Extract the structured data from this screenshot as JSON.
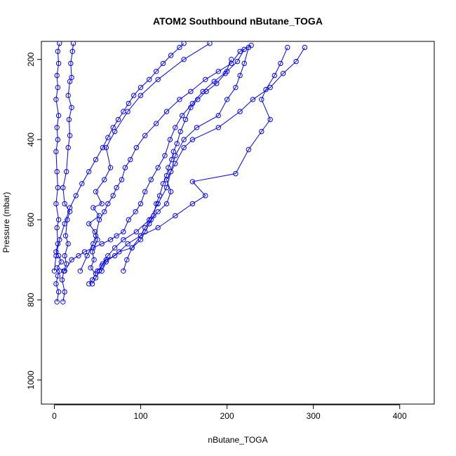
{
  "chart_data": {
    "type": "scatter",
    "title": "ATOM2 Southbound nButane_TOGA",
    "xlabel": "nButane_TOGA",
    "ylabel": "Pressure (mbar)",
    "xlim": [
      -15,
      440
    ],
    "ylim": [
      1060,
      155
    ],
    "y_reversed": true,
    "x_ticks": [
      0,
      100,
      200,
      300,
      400
    ],
    "y_ticks": [
      200,
      400,
      600,
      800,
      1000
    ],
    "marker": "open-circle",
    "series_color": "#0000ff",
    "series": [
      {
        "points": [
          [
            3,
            805
          ],
          [
            5,
            780
          ],
          [
            2,
            760
          ],
          [
            4,
            740
          ],
          [
            6,
            728
          ],
          [
            3,
            720
          ],
          [
            8,
            705
          ],
          [
            5,
            690
          ],
          [
            2,
            680
          ],
          [
            4,
            660
          ],
          [
            3,
            620
          ],
          [
            5,
            600
          ],
          [
            2,
            560
          ],
          [
            4,
            520
          ],
          [
            3,
            480
          ],
          [
            2,
            430
          ],
          [
            4,
            400
          ],
          [
            3,
            370
          ],
          [
            5,
            340
          ],
          [
            2,
            300
          ],
          [
            4,
            270
          ],
          [
            3,
            240
          ],
          [
            5,
            210
          ],
          [
            4,
            180
          ],
          [
            6,
            160
          ]
        ]
      },
      {
        "points": [
          [
            10,
            805
          ],
          [
            12,
            780
          ],
          [
            9,
            750
          ],
          [
            11,
            728
          ],
          [
            14,
            710
          ],
          [
            12,
            690
          ],
          [
            16,
            660
          ],
          [
            13,
            640
          ],
          [
            15,
            600
          ],
          [
            18,
            580
          ],
          [
            12,
            560
          ],
          [
            10,
            520
          ],
          [
            14,
            480
          ],
          [
            16,
            420
          ],
          [
            18,
            390
          ],
          [
            17,
            350
          ],
          [
            20,
            320
          ],
          [
            16,
            290
          ],
          [
            18,
            255
          ],
          [
            20,
            245
          ],
          [
            19,
            210
          ],
          [
            21,
            180
          ],
          [
            22,
            160
          ]
        ]
      },
      {
        "points": [
          [
            40,
            760
          ],
          [
            44,
            750
          ],
          [
            48,
            735
          ],
          [
            42,
            720
          ],
          [
            46,
            700
          ],
          [
            44,
            680
          ],
          [
            50,
            650
          ],
          [
            47,
            630
          ],
          [
            40,
            610
          ],
          [
            52,
            590
          ],
          [
            45,
            570
          ],
          [
            55,
            560
          ],
          [
            48,
            530
          ],
          [
            58,
            500
          ],
          [
            65,
            470
          ],
          [
            60,
            420
          ],
          [
            70,
            380
          ],
          [
            85,
            330
          ],
          [
            100,
            290
          ],
          [
            120,
            250
          ],
          [
            150,
            200
          ],
          [
            180,
            160
          ]
        ]
      },
      {
        "points": [
          [
            44,
            760
          ],
          [
            48,
            745
          ],
          [
            52,
            728
          ],
          [
            56,
            710
          ],
          [
            62,
            690
          ],
          [
            70,
            670
          ],
          [
            80,
            650
          ],
          [
            95,
            630
          ],
          [
            110,
            600
          ],
          [
            120,
            560
          ],
          [
            130,
            520
          ],
          [
            135,
            480
          ],
          [
            140,
            440
          ],
          [
            150,
            400
          ],
          [
            165,
            370
          ],
          [
            190,
            340
          ],
          [
            200,
            300
          ],
          [
            210,
            270
          ],
          [
            215,
            240
          ],
          [
            220,
            210
          ],
          [
            225,
            170
          ]
        ]
      },
      {
        "points": [
          [
            50,
            728
          ],
          [
            55,
            715
          ],
          [
            60,
            700
          ],
          [
            70,
            690
          ],
          [
            85,
            660
          ],
          [
            100,
            640
          ],
          [
            120,
            620
          ],
          [
            140,
            590
          ],
          [
            160,
            560
          ],
          [
            175,
            540
          ],
          [
            160,
            505
          ],
          [
            210,
            485
          ],
          [
            225,
            425
          ],
          [
            240,
            380
          ],
          [
            250,
            350
          ],
          [
            240,
            300
          ],
          [
            245,
            275
          ],
          [
            255,
            240
          ],
          [
            262,
            210
          ],
          [
            270,
            170
          ]
        ]
      },
      {
        "points": [
          [
            55,
            728
          ],
          [
            60,
            705
          ],
          [
            75,
            680
          ],
          [
            90,
            670
          ],
          [
            100,
            640
          ],
          [
            105,
            620
          ],
          [
            112,
            600
          ],
          [
            120,
            580
          ],
          [
            130,
            560
          ],
          [
            135,
            530
          ],
          [
            130,
            500
          ],
          [
            140,
            460
          ],
          [
            150,
            420
          ],
          [
            160,
            400
          ],
          [
            190,
            370
          ],
          [
            215,
            330
          ],
          [
            230,
            300
          ],
          [
            250,
            270
          ],
          [
            265,
            235
          ],
          [
            280,
            205
          ],
          [
            290,
            170
          ]
        ]
      },
      {
        "points": [
          [
            30,
            728
          ],
          [
            38,
            690
          ],
          [
            45,
            660
          ],
          [
            48,
            640
          ],
          [
            52,
            600
          ],
          [
            58,
            580
          ],
          [
            62,
            560
          ],
          [
            68,
            540
          ],
          [
            72,
            520
          ],
          [
            78,
            500
          ],
          [
            82,
            470
          ],
          [
            88,
            450
          ],
          [
            95,
            420
          ],
          [
            105,
            390
          ],
          [
            118,
            360
          ],
          [
            130,
            330
          ],
          [
            145,
            300
          ],
          [
            158,
            280
          ],
          [
            175,
            250
          ],
          [
            190,
            230
          ],
          [
            205,
            210
          ],
          [
            215,
            180
          ],
          [
            228,
            165
          ]
        ]
      },
      {
        "points": [
          [
            12,
            728
          ],
          [
            20,
            700
          ],
          [
            28,
            690
          ],
          [
            35,
            680
          ],
          [
            45,
            670
          ],
          [
            55,
            660
          ],
          [
            65,
            650
          ],
          [
            72,
            640
          ],
          [
            80,
            630
          ],
          [
            86,
            600
          ],
          [
            94,
            580
          ],
          [
            100,
            560
          ],
          [
            105,
            530
          ],
          [
            112,
            500
          ],
          [
            120,
            470
          ],
          [
            128,
            440
          ],
          [
            134,
            400
          ],
          [
            140,
            370
          ],
          [
            148,
            340
          ],
          [
            160,
            310
          ],
          [
            172,
            280
          ],
          [
            185,
            255
          ],
          [
            200,
            230
          ],
          [
            212,
            205
          ],
          [
            220,
            175
          ]
        ]
      },
      {
        "points": [
          [
            80,
            728
          ],
          [
            84,
            700
          ],
          [
            90,
            670
          ],
          [
            100,
            650
          ],
          [
            105,
            630
          ],
          [
            110,
            610
          ],
          [
            115,
            590
          ],
          [
            118,
            560
          ],
          [
            122,
            540
          ],
          [
            126,
            510
          ],
          [
            130,
            490
          ],
          [
            132,
            470
          ],
          [
            136,
            450
          ],
          [
            138,
            430
          ],
          [
            142,
            410
          ],
          [
            146,
            380
          ],
          [
            152,
            350
          ],
          [
            158,
            320
          ],
          [
            166,
            300
          ],
          [
            176,
            280
          ],
          [
            188,
            260
          ],
          [
            198,
            235
          ],
          [
            205,
            200
          ]
        ]
      },
      {
        "points": [
          [
            0,
            728
          ],
          [
            2,
            690
          ],
          [
            6,
            650
          ],
          [
            12,
            610
          ],
          [
            18,
            570
          ],
          [
            25,
            540
          ],
          [
            32,
            510
          ],
          [
            40,
            480
          ],
          [
            48,
            450
          ],
          [
            56,
            420
          ],
          [
            62,
            395
          ],
          [
            68,
            370
          ],
          [
            74,
            350
          ],
          [
            80,
            330
          ],
          [
            86,
            310
          ],
          [
            92,
            290
          ],
          [
            100,
            270
          ],
          [
            110,
            250
          ],
          [
            118,
            230
          ],
          [
            126,
            210
          ],
          [
            135,
            190
          ],
          [
            145,
            170
          ],
          [
            150,
            160
          ]
        ]
      }
    ]
  }
}
